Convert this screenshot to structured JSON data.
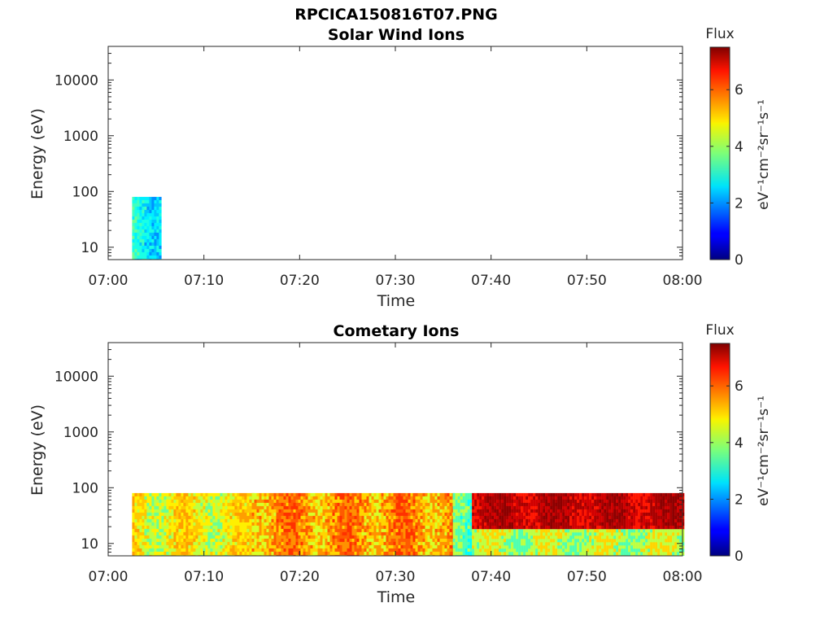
{
  "figure_title": "RPCICA150816T07.PNG",
  "chart_data": [
    {
      "type": "heatmap",
      "title": "Solar Wind Ions",
      "xlabel": "Time",
      "ylabel": "Energy (eV)",
      "x_ticks": [
        "07:00",
        "07:10",
        "07:20",
        "07:30",
        "07:40",
        "07:50",
        "08:00"
      ],
      "x_range": [
        "07:00",
        "08:00"
      ],
      "y_scale": "log",
      "y_ticks": [
        10,
        100,
        1000,
        10000
      ],
      "y_tick_labels": [
        "10",
        "100",
        "1000",
        "10000"
      ],
      "y_range": [
        6,
        40000
      ],
      "colorbar": {
        "title": "Flux",
        "label": "eV⁻¹cm⁻²sr⁻¹s⁻¹",
        "range": [
          0,
          7.5
        ],
        "ticks": [
          "0",
          "2",
          "4",
          "6"
        ],
        "colormap": "jet"
      },
      "grid": false,
      "regions": [
        {
          "t_start": "07:02:30",
          "t_end": "07:05:30",
          "e_min": 6,
          "e_max": 80,
          "flux_levels": [
            2.0,
            2.4,
            2.7,
            3.0,
            3.3,
            3.6
          ]
        }
      ]
    },
    {
      "type": "heatmap",
      "title": "Cometary Ions",
      "xlabel": "Time",
      "ylabel": "Energy (eV)",
      "x_ticks": [
        "07:00",
        "07:10",
        "07:20",
        "07:30",
        "07:40",
        "07:50",
        "08:00"
      ],
      "x_range": [
        "07:00",
        "08:00"
      ],
      "y_scale": "log",
      "y_ticks": [
        10,
        100,
        1000,
        10000
      ],
      "y_tick_labels": [
        "10",
        "100",
        "1000",
        "10000"
      ],
      "y_range": [
        6,
        40000
      ],
      "colorbar": {
        "title": "Flux",
        "label": "eV⁻¹cm⁻²sr⁻¹s⁻¹",
        "range": [
          0,
          7.5
        ],
        "ticks": [
          "0",
          "2",
          "4",
          "6"
        ],
        "colormap": "jet"
      },
      "grid": false,
      "regions": [
        {
          "t_start": "07:02:30",
          "t_end": "07:15:00",
          "e_min": 6,
          "e_max": 80,
          "flux_levels": [
            3.6,
            4.2,
            4.8,
            5.1,
            5.4
          ]
        },
        {
          "t_start": "07:15:00",
          "t_end": "07:36:00",
          "e_min": 6,
          "e_max": 80,
          "flux_levels": [
            4.4,
            5.0,
            5.5,
            5.9,
            6.2
          ]
        },
        {
          "t_start": "07:36:00",
          "t_end": "07:38:00",
          "e_min": 6,
          "e_max": 80,
          "flux_levels": [
            2.8,
            3.4,
            4.2
          ]
        },
        {
          "t_start": "07:38:00",
          "t_end": "08:00:00",
          "e_min": 18,
          "e_max": 80,
          "flux_levels": [
            6.4,
            6.9,
            7.2,
            7.4
          ]
        },
        {
          "t_start": "07:38:00",
          "t_end": "08:00:00",
          "e_min": 6,
          "e_max": 18,
          "flux_levels": [
            3.4,
            4.2,
            5.0
          ]
        }
      ]
    }
  ]
}
